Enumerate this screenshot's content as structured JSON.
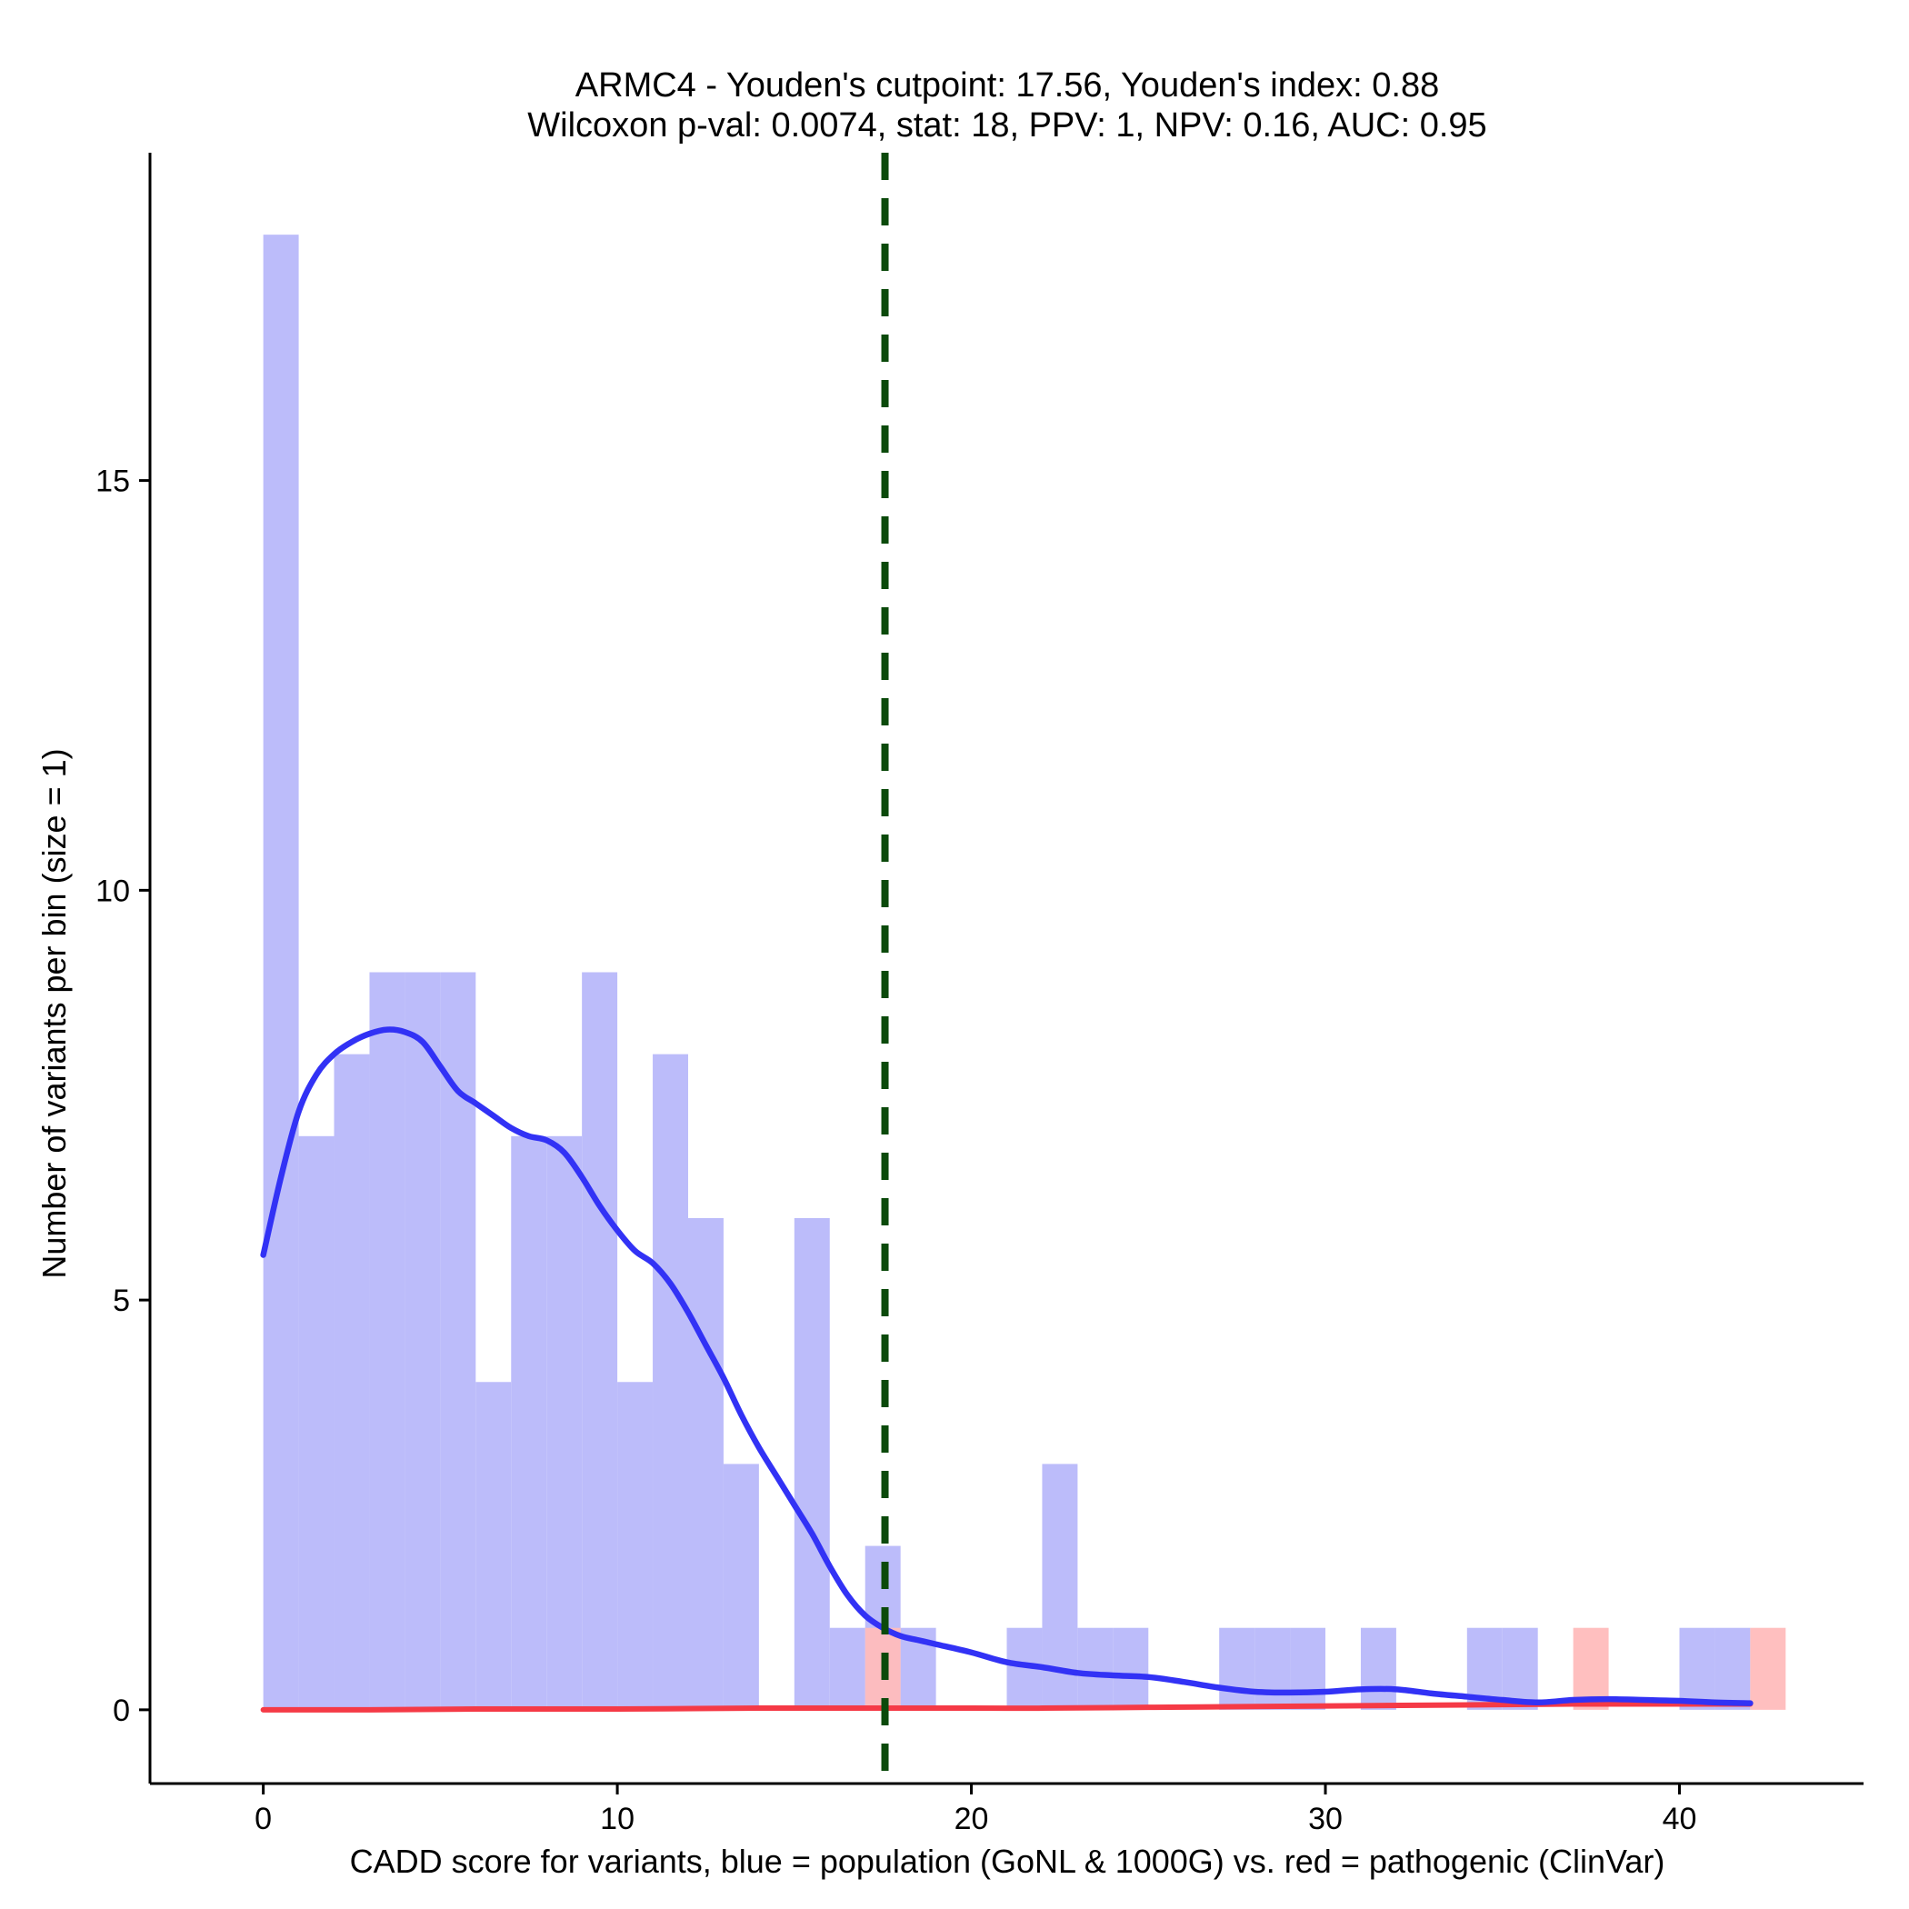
{
  "chart_data": {
    "type": "histogram",
    "title_line1": "ARMC4 - Youden's cutpoint: 17.56, Youden's index: 0.88",
    "title_line2": "Wilcoxon p-val: 0.0074, stat: 18, PPV: 1, NPV: 0.16, AUC: 0.95",
    "xlabel": "CADD score for variants, blue = population (GoNL & 1000G) vs. red = pathogenic (ClinVar)",
    "ylabel": "Number of variants per bin (size = 1)",
    "xlim": [
      -3.2,
      45.2
    ],
    "ylim": [
      -0.9,
      19.0
    ],
    "x_ticks": [
      0,
      10,
      20,
      30,
      40
    ],
    "y_ticks": [
      0,
      5,
      10,
      15
    ],
    "bin_size": 1,
    "cutpoint": 17.56,
    "colors": {
      "population_bar": "#bcbcfa",
      "pathogenic_bar": "#ffbcbc",
      "population_curve": "#3232f5",
      "pathogenic_curve": "#f53a46",
      "cutpoint_line": "#0b4a0b"
    },
    "series": [
      {
        "name": "population (GoNL & 1000G)",
        "bins": [
          [
            0,
            18
          ],
          [
            1,
            7
          ],
          [
            2,
            8
          ],
          [
            3,
            9
          ],
          [
            4,
            9
          ],
          [
            5,
            9
          ],
          [
            6,
            4
          ],
          [
            7,
            7
          ],
          [
            8,
            7
          ],
          [
            9,
            9
          ],
          [
            10,
            4
          ],
          [
            11,
            8
          ],
          [
            12,
            6
          ],
          [
            13,
            3
          ],
          [
            15,
            6
          ],
          [
            16,
            1
          ],
          [
            17,
            2
          ],
          [
            18,
            1
          ],
          [
            21,
            1
          ],
          [
            22,
            3
          ],
          [
            23,
            1
          ],
          [
            24,
            1
          ],
          [
            27,
            1
          ],
          [
            28,
            1
          ],
          [
            29,
            1
          ],
          [
            31,
            1
          ],
          [
            34,
            1
          ],
          [
            35,
            1
          ],
          [
            40,
            1
          ],
          [
            41,
            1
          ]
        ],
        "density_curve": [
          [
            0,
            5.55
          ],
          [
            0.5,
            6.5
          ],
          [
            1,
            7.3
          ],
          [
            1.5,
            7.75
          ],
          [
            2,
            8.0
          ],
          [
            2.5,
            8.15
          ],
          [
            3,
            8.25
          ],
          [
            3.5,
            8.3
          ],
          [
            4,
            8.27
          ],
          [
            4.5,
            8.15
          ],
          [
            5,
            7.85
          ],
          [
            5.5,
            7.55
          ],
          [
            6,
            7.4
          ],
          [
            6.5,
            7.25
          ],
          [
            7,
            7.1
          ],
          [
            7.5,
            7.0
          ],
          [
            8,
            6.95
          ],
          [
            8.5,
            6.8
          ],
          [
            9,
            6.5
          ],
          [
            9.5,
            6.15
          ],
          [
            10,
            5.85
          ],
          [
            10.5,
            5.6
          ],
          [
            11,
            5.45
          ],
          [
            11.5,
            5.2
          ],
          [
            12,
            4.85
          ],
          [
            12.5,
            4.45
          ],
          [
            13,
            4.05
          ],
          [
            13.5,
            3.6
          ],
          [
            14,
            3.2
          ],
          [
            14.5,
            2.85
          ],
          [
            15,
            2.5
          ],
          [
            15.5,
            2.15
          ],
          [
            16,
            1.75
          ],
          [
            16.5,
            1.4
          ],
          [
            17,
            1.15
          ],
          [
            17.5,
            1.0
          ],
          [
            18,
            0.9
          ],
          [
            18.5,
            0.85
          ],
          [
            19,
            0.8
          ],
          [
            20,
            0.7
          ],
          [
            21,
            0.58
          ],
          [
            22,
            0.52
          ],
          [
            23,
            0.45
          ],
          [
            24,
            0.42
          ],
          [
            25,
            0.4
          ],
          [
            26,
            0.34
          ],
          [
            27,
            0.27
          ],
          [
            28,
            0.22
          ],
          [
            29,
            0.21
          ],
          [
            30,
            0.22
          ],
          [
            31,
            0.25
          ],
          [
            32,
            0.25
          ],
          [
            33,
            0.2
          ],
          [
            34,
            0.16
          ],
          [
            35,
            0.12
          ],
          [
            36,
            0.09
          ],
          [
            37,
            0.12
          ],
          [
            38,
            0.13
          ],
          [
            39,
            0.12
          ],
          [
            40,
            0.11
          ],
          [
            41,
            0.09
          ],
          [
            42,
            0.08
          ]
        ]
      },
      {
        "name": "pathogenic (ClinVar)",
        "bins": [
          [
            17,
            1
          ],
          [
            37,
            1
          ],
          [
            42,
            1
          ]
        ],
        "density_curve": [
          [
            0,
            0.0
          ],
          [
            3,
            0.0
          ],
          [
            6,
            0.01
          ],
          [
            10,
            0.01
          ],
          [
            14,
            0.02
          ],
          [
            17,
            0.02
          ],
          [
            20,
            0.02
          ],
          [
            22,
            0.02
          ],
          [
            25,
            0.03
          ],
          [
            28,
            0.04
          ],
          [
            31,
            0.05
          ],
          [
            34,
            0.06
          ],
          [
            37,
            0.07
          ],
          [
            40,
            0.07
          ],
          [
            42,
            0.07
          ]
        ]
      }
    ]
  }
}
